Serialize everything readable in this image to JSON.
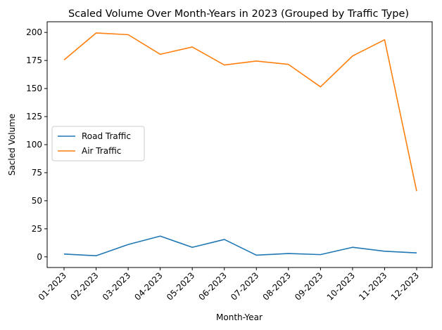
{
  "chart_data": {
    "type": "line",
    "title": "Scaled Volume Over Month-Years in 2023 (Grouped by Traffic Type)",
    "xlabel": "Month-Year",
    "ylabel": "Sacled Volume",
    "categories": [
      "01-2023",
      "02-2023",
      "03-2023",
      "04-2023",
      "05-2023",
      "06-2023",
      "07-2023",
      "08-2023",
      "09-2023",
      "10-2023",
      "11-2023",
      "12-2023"
    ],
    "ylim": [
      -9.5,
      209.5
    ],
    "yticks": [
      0,
      25,
      50,
      75,
      100,
      125,
      150,
      175,
      200
    ],
    "grid": false,
    "legend_position": "center-left",
    "series": [
      {
        "name": "Road Traffic",
        "color": "#1f77b4",
        "values": [
          2.5,
          1.0,
          11.0,
          18.5,
          8.5,
          15.5,
          1.5,
          3.0,
          2.0,
          8.5,
          5.0,
          3.5
        ]
      },
      {
        "name": "Air Traffic",
        "color": "#ff7f0e",
        "values": [
          175.5,
          199.5,
          198.0,
          180.5,
          187.0,
          171.0,
          174.5,
          171.5,
          151.5,
          179.0,
          193.5,
          58.5
        ]
      }
    ]
  }
}
